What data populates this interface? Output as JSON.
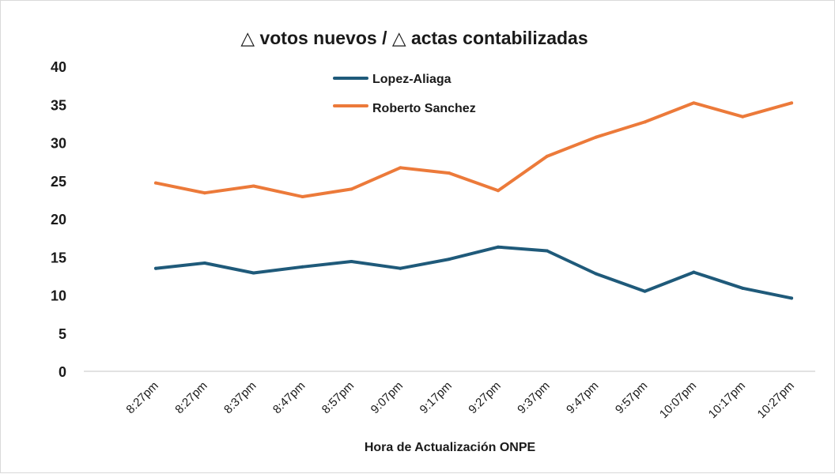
{
  "chart_data": {
    "type": "line",
    "title": "△ votos nuevos / △ actas contabilizadas",
    "xlabel": "Hora de Actualización ONPE",
    "ylabel": "",
    "categories": [
      "8:27pm",
      "8:27pm",
      "8:37pm",
      "8:47pm",
      "8:57pm",
      "9:07pm",
      "9:17pm",
      "9:27pm",
      "9:37pm",
      "9:47pm",
      "9:57pm",
      "10:07pm",
      "10:17pm",
      "10:27pm"
    ],
    "ylim": [
      0,
      40
    ],
    "yticks": [
      "0",
      "5",
      "10",
      "15",
      "20",
      "25",
      "30",
      "35",
      "40"
    ],
    "series": [
      {
        "name": "Lopez-Aliaga",
        "color": "#1f5a7a",
        "values": [
          13.5,
          14.2,
          12.9,
          13.7,
          14.4,
          13.5,
          14.7,
          16.3,
          15.8,
          12.8,
          10.5,
          13.0,
          10.9,
          9.6
        ]
      },
      {
        "name": "Roberto Sanchez",
        "color": "#ec7a3a",
        "values": [
          24.7,
          23.4,
          24.3,
          22.9,
          23.9,
          26.7,
          26.0,
          23.7,
          28.2,
          30.7,
          32.7,
          35.2,
          33.4,
          35.2
        ]
      }
    ],
    "legend_position": "top-center"
  }
}
